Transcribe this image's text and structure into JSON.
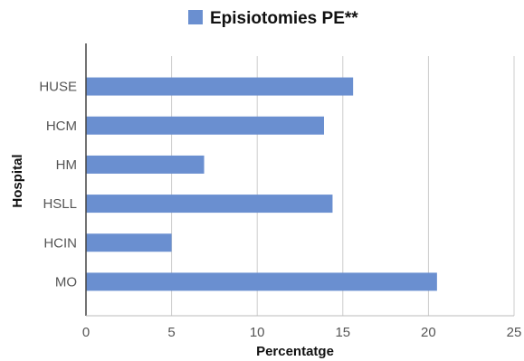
{
  "chart_data": {
    "type": "bar",
    "orientation": "horizontal",
    "categories": [
      "HUSE",
      "HCM",
      "HM",
      "HSLL",
      "HCIN",
      "MO"
    ],
    "series": [
      {
        "name": "Episiotomies PE**",
        "values": [
          15.6,
          13.9,
          6.9,
          14.4,
          5.0,
          20.5
        ],
        "color": "#6a8fd0"
      }
    ],
    "xlabel": "Percentatge",
    "ylabel": "Hospital",
    "xlim": [
      0,
      25
    ],
    "xticks": [
      0,
      5,
      10,
      15,
      20,
      25
    ],
    "grid": "vertical",
    "legend_position": "top-center"
  }
}
